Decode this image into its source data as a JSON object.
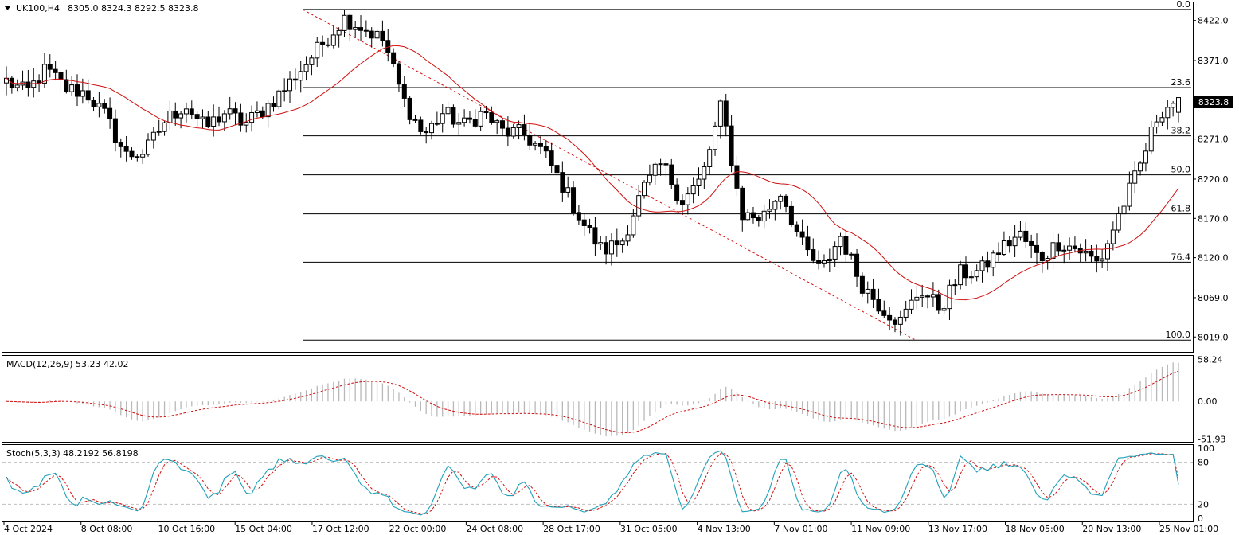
{
  "chart_data": {
    "type": "candlestick",
    "symbol": "UK100,H4",
    "ohlc_header": "8305.0 8324.3 8292.5 8323.8",
    "last_price": "8323.8",
    "main_axis": {
      "ylim": [
        8000,
        8445
      ],
      "ticks": [
        "8422.0",
        "8371.0",
        "8320.0",
        "8271.0",
        "8220.0",
        "8170.0",
        "8120.0",
        "8069.0",
        "8019.0"
      ],
      "tick_values": [
        8422,
        8371,
        8320,
        8271,
        8220,
        8170,
        8120,
        8069,
        8019
      ]
    },
    "fibonacci": {
      "levels": [
        "0.0",
        "23.6",
        "38.2",
        "50.0",
        "61.8",
        "76.4",
        "100.0"
      ],
      "prices": [
        8436.0,
        8336.6,
        8275.1,
        8225.4,
        8175.7,
        8114.2,
        8015.0
      ]
    },
    "x_labels": [
      "4 Oct 2024",
      "8 Oct 08:00",
      "10 Oct 16:00",
      "15 Oct 04:00",
      "17 Oct 12:00",
      "22 Oct 00:00",
      "24 Oct 08:00",
      "28 Oct 17:00",
      "31 Oct 05:00",
      "4 Nov 13:00",
      "7 Nov 01:00",
      "11 Nov 09:00",
      "13 Nov 17:00",
      "18 Nov 05:00",
      "20 Nov 13:00",
      "25 Nov 01:00"
    ],
    "close_path": [
      8345,
      8330,
      8360,
      8335,
      8330,
      8300,
      8250,
      8255,
      8295,
      8315,
      8285,
      8305,
      8290,
      8310,
      8335,
      8365,
      8395,
      8425,
      8412,
      8396,
      8320,
      8275,
      8305,
      8288,
      8305,
      8280,
      8278,
      8255,
      8212,
      8165,
      8128,
      8142,
      8205,
      8240,
      8192,
      8220,
      8315,
      8175,
      8170,
      8205,
      8138,
      8102,
      8148,
      8088,
      8058,
      8038,
      8080,
      8055,
      8100,
      8102,
      8130,
      8150,
      8118,
      8140,
      8130,
      8112,
      8175,
      8232,
      8305,
      8323.8
    ],
    "indicators": {
      "ma_label": "",
      "macd": {
        "label": "MACD(12,26,9) 53.23 42.02",
        "ticks": [
          "58.24",
          "0.00",
          "-51.93"
        ],
        "tick_values": [
          58.24,
          0,
          -51.93
        ]
      },
      "stoch": {
        "label": "Stoch(5,3,3) 48.2192 56.8198",
        "ticks": [
          "100",
          "80",
          "20",
          "0"
        ],
        "tick_values": [
          100,
          80,
          20,
          0
        ]
      }
    },
    "colors": {
      "ma": "#d01010",
      "signal": "#d01010",
      "stoch_main": "#1fa0b8",
      "grid": "#bfbfbf",
      "candle": "#000000"
    }
  }
}
